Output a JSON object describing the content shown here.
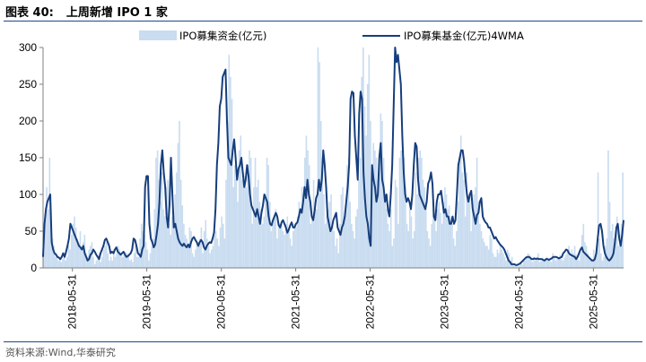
{
  "header": {
    "figure_number": "图表 40:",
    "figure_title": "上周新增 IPO 1 家"
  },
  "footer": {
    "source": "资料来源:Wind,华泰研究"
  },
  "colors": {
    "bar": "#c9dcf0",
    "line": "#163e7c",
    "axis": "#7f7f7f"
  },
  "chart_data": {
    "type": "bar+line",
    "title": "",
    "xlabel": "",
    "ylabel": "",
    "ylim": [
      0,
      300
    ],
    "yticks": [
      0,
      50,
      100,
      150,
      200,
      250,
      300
    ],
    "x_start": "2018-01-07",
    "x_end": "2025-10-26",
    "xticks": [
      "2018-05-31",
      "2019-05-31",
      "2020-05-31",
      "2021-05-31",
      "2022-05-31",
      "2023-05-31",
      "2024-05-31",
      "2025-05-31"
    ],
    "grid": false,
    "legend": {
      "position": "top",
      "entries": [
        "IPO募集资金(亿元)",
        "IPO募集基金(亿元)4WMA"
      ]
    },
    "series": [
      {
        "name": "IPO募集资金(亿元)",
        "type": "bar",
        "frequency": "weekly",
        "values": [
          20,
          70,
          110,
          80,
          150,
          60,
          40,
          30,
          15,
          20,
          10,
          15,
          8,
          12,
          20,
          10,
          15,
          30,
          25,
          45,
          60,
          70,
          55,
          40,
          30,
          50,
          25,
          35,
          45,
          20,
          15,
          25,
          30,
          35,
          15,
          5,
          10,
          12,
          20,
          8,
          15,
          25,
          30,
          35,
          20,
          10,
          15,
          10,
          25,
          15,
          20,
          30,
          25,
          20,
          15,
          18,
          22,
          20,
          15,
          10,
          12,
          8,
          20,
          30,
          15,
          15,
          40,
          60,
          50,
          45,
          35,
          25,
          10,
          20,
          30,
          40,
          80,
          150,
          160,
          120,
          90,
          130,
          80,
          70,
          110,
          120,
          60,
          45,
          70,
          75,
          100,
          130,
          170,
          200,
          120,
          85,
          60,
          45,
          40,
          30,
          55,
          50,
          20,
          15,
          25,
          35,
          30,
          40,
          55,
          20,
          50,
          65,
          40,
          30,
          20,
          25,
          30,
          45,
          50,
          40,
          30,
          55,
          70,
          60,
          40,
          120,
          200,
          290,
          260,
          230,
          110,
          140,
          120,
          90,
          160,
          180,
          120,
          130,
          125,
          110,
          140,
          160,
          150,
          60,
          110,
          150,
          110,
          120,
          90,
          80,
          60,
          70,
          100,
          150,
          140,
          90,
          50,
          60,
          70,
          80,
          40,
          55,
          60,
          65,
          50,
          45,
          60,
          70,
          55,
          40,
          30,
          50,
          60,
          55,
          70,
          90,
          80,
          110,
          100,
          150,
          180,
          160,
          140,
          60,
          70,
          120,
          90,
          80,
          300,
          280,
          200,
          150,
          100,
          60,
          70,
          80,
          90,
          100,
          60,
          50,
          30,
          40,
          20,
          60,
          100,
          110,
          70,
          80,
          140,
          150,
          90,
          60,
          50,
          40,
          70,
          80,
          120,
          150,
          260,
          300,
          220,
          180,
          250,
          290,
          200,
          140,
          170,
          160,
          150,
          120,
          140,
          210,
          200,
          150,
          100,
          80,
          60,
          50,
          80,
          30,
          40,
          120,
          110,
          60,
          150,
          160,
          170,
          150,
          110,
          60,
          50,
          80,
          70,
          40,
          50,
          130,
          100,
          150,
          160,
          150,
          120,
          110,
          90,
          50,
          40,
          30,
          60,
          80,
          70,
          50,
          80,
          90,
          75,
          60,
          90,
          110,
          100,
          80,
          85,
          70,
          60,
          40,
          30,
          50,
          90,
          150,
          180,
          130,
          120,
          70,
          130,
          90,
          100,
          50,
          80,
          100,
          110,
          150,
          90,
          60,
          50,
          40,
          35,
          30,
          30,
          25,
          45,
          40,
          20,
          15,
          15,
          25,
          20,
          30,
          25,
          20,
          15,
          10,
          25,
          20,
          10,
          15,
          5,
          3,
          5,
          2,
          3,
          8,
          5,
          12,
          10,
          15,
          20,
          18,
          12,
          8,
          15,
          10,
          12,
          20,
          8,
          10,
          14,
          9,
          12,
          15,
          10,
          12,
          8,
          20,
          14,
          10,
          12,
          15,
          18,
          12,
          10,
          14,
          18,
          22,
          30,
          15,
          25,
          20,
          30,
          18,
          12,
          10,
          20,
          45,
          60,
          35,
          30,
          20,
          15,
          10,
          12,
          25,
          15,
          20,
          130,
          40,
          20,
          10,
          15,
          30,
          40,
          160,
          90,
          50,
          60,
          40,
          50,
          70,
          30,
          45,
          60,
          130
        ]
      },
      {
        "name": "IPO募集基金(亿元)4WMA",
        "type": "line",
        "values": [
          15,
          60,
          80,
          90,
          95,
          100,
          35,
          25,
          20,
          18,
          15,
          14,
          12,
          15,
          20,
          15,
          22,
          30,
          40,
          60,
          55,
          50,
          45,
          40,
          35,
          30,
          28,
          25,
          30,
          20,
          15,
          10,
          12,
          18,
          20,
          25,
          22,
          18,
          15,
          12,
          20,
          25,
          30,
          38,
          40,
          35,
          30,
          20,
          22,
          20,
          25,
          28,
          22,
          20,
          18,
          20,
          22,
          18,
          15,
          16,
          18,
          20,
          25,
          40,
          38,
          30,
          20,
          18,
          15,
          25,
          30,
          110,
          125,
          125,
          60,
          40,
          35,
          28,
          32,
          45,
          60,
          90,
          140,
          160,
          130,
          110,
          70,
          55,
          85,
          150,
          100,
          55,
          60,
          50,
          40,
          35,
          32,
          30,
          33,
          30,
          28,
          32,
          28,
          35,
          40,
          42,
          38,
          35,
          30,
          35,
          38,
          35,
          28,
          25,
          30,
          33,
          35,
          34,
          40,
          48,
          80,
          140,
          170,
          220,
          230,
          260,
          265,
          270,
          200,
          150,
          145,
          140,
          160,
          175,
          150,
          120,
          135,
          140,
          150,
          130,
          110,
          120,
          140,
          125,
          100,
          85,
          80,
          75,
          70,
          80,
          70,
          60,
          75,
          85,
          100,
          95,
          90,
          70,
          60,
          58,
          65,
          70,
          75,
          70,
          58,
          55,
          62,
          65,
          60,
          55,
          48,
          52,
          58,
          62,
          55,
          55,
          60,
          62,
          70,
          80,
          75,
          90,
          110,
          95,
          120,
          100,
          90,
          70,
          65,
          78,
          95,
          100,
          120,
          105,
          120,
          160,
          140,
          110,
          70,
          60,
          50,
          55,
          65,
          70,
          75,
          55,
          50,
          45,
          55,
          60,
          70,
          90,
          110,
          140,
          230,
          240,
          238,
          180,
          150,
          120,
          210,
          240,
          230,
          130,
          95,
          70,
          60,
          40,
          30,
          140,
          120,
          110,
          90,
          100,
          150,
          170,
          120,
          110,
          90,
          100,
          80,
          70,
          100,
          140,
          220,
          300,
          280,
          290,
          270,
          250,
          180,
          130,
          100,
          90,
          95,
          90,
          80,
          100,
          140,
          170,
          165,
          120,
          100,
          95,
          90,
          85,
          80,
          90,
          115,
          120,
          130,
          115,
          70,
          65,
          90,
          100,
          100,
          105,
          90,
          75,
          80,
          70,
          70,
          60,
          60,
          70,
          60,
          65,
          100,
          140,
          150,
          160,
          160,
          145,
          120,
          100,
          90,
          100,
          105,
          80,
          70,
          60,
          72,
          75,
          90,
          95,
          70,
          65,
          62,
          60,
          55,
          55,
          50,
          45,
          40,
          42,
          38,
          35,
          32,
          30,
          28,
          25,
          20,
          15,
          10,
          8,
          5,
          5,
          5,
          4,
          4,
          5,
          6,
          8,
          10,
          12,
          14,
          15,
          15,
          14,
          12,
          12,
          13,
          12,
          13,
          12,
          12,
          12,
          11,
          10,
          12,
          12,
          11,
          12,
          13,
          15,
          15,
          15,
          14,
          13,
          14,
          15,
          20,
          22,
          25,
          24,
          20,
          18,
          17,
          16,
          15,
          12,
          15,
          20,
          25,
          28,
          22,
          20,
          18,
          16,
          14,
          12,
          10,
          10,
          12,
          20,
          40,
          58,
          60,
          50,
          30,
          20,
          15,
          12,
          10,
          12,
          15,
          20,
          35,
          55,
          60,
          40,
          30,
          45,
          65
        ]
      }
    ]
  }
}
